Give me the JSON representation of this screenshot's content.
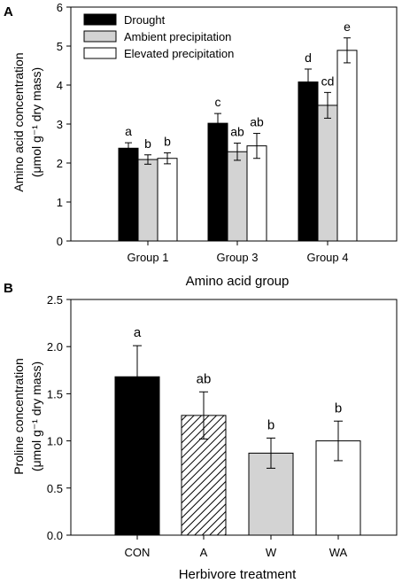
{
  "chart_data": [
    {
      "panel_label": "A",
      "type": "bar",
      "categories": [
        "Group 1",
        "Group 3",
        "Group 4"
      ],
      "series": [
        {
          "name": "Drought",
          "values": [
            2.38,
            3.02,
            4.08
          ],
          "errors": [
            0.14,
            0.25,
            0.33
          ],
          "letters": [
            "a",
            "c",
            "d"
          ],
          "fill": "#000000",
          "pattern": "solid"
        },
        {
          "name": "Ambient precipitation",
          "values": [
            2.09,
            2.29,
            3.48
          ],
          "errors": [
            0.12,
            0.22,
            0.33
          ],
          "letters": [
            "b",
            "ab",
            "cd"
          ],
          "fill": "#d3d3d3",
          "pattern": "solid"
        },
        {
          "name": "Elevated precipitation",
          "values": [
            2.12,
            2.44,
            4.89
          ],
          "errors": [
            0.14,
            0.32,
            0.32
          ],
          "letters": [
            "b",
            "ab",
            "e"
          ],
          "fill": "#ffffff",
          "pattern": "solid"
        }
      ],
      "xlabel": "Amino acid group",
      "ylabel_line1": "Amino acid concentration",
      "ylabel_line2": "(μmol g⁻¹ dry mass)",
      "ylim": [
        0,
        6
      ],
      "yticks": [
        "0",
        "1",
        "2",
        "3",
        "4",
        "5",
        "6"
      ],
      "legend_position": "top-left",
      "grid": false
    },
    {
      "panel_label": "B",
      "type": "bar",
      "categories": [
        "CON",
        "A",
        "W",
        "WA"
      ],
      "series": [
        {
          "values": [
            1.68,
            1.27,
            0.87,
            1.0
          ],
          "errors": [
            0.33,
            0.25,
            0.16,
            0.21
          ],
          "letters": [
            "a",
            "ab",
            "b",
            "b"
          ],
          "fills": [
            "#000000",
            "#ffffff",
            "#d3d3d3",
            "#ffffff"
          ],
          "patterns": [
            "solid",
            "hatched",
            "solid",
            "solid"
          ]
        }
      ],
      "xlabel": "Herbivore treatment",
      "ylabel_line1": "Proline concentration",
      "ylabel_line2": "(μmol g⁻¹ dry mass)",
      "ylim": [
        0,
        2.5
      ],
      "yticks": [
        "0.0",
        "0.5",
        "1.0",
        "1.5",
        "2.0",
        "2.5"
      ],
      "grid": false
    }
  ]
}
